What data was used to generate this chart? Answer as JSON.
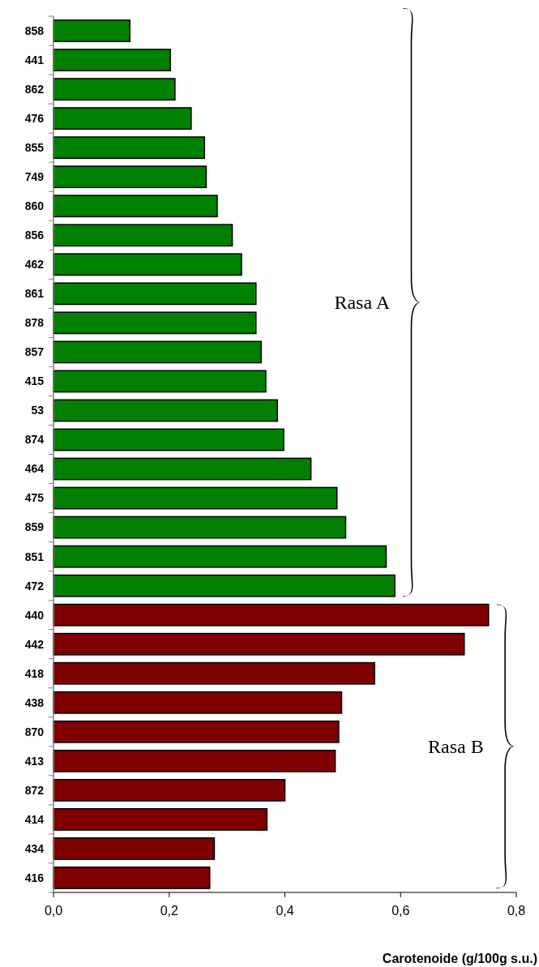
{
  "chart_data": {
    "type": "bar",
    "orientation": "horizontal",
    "categories": [
      "858",
      "441",
      "862",
      "476",
      "855",
      "749",
      "860",
      "856",
      "462",
      "861",
      "878",
      "857",
      "415",
      "53",
      "874",
      "464",
      "475",
      "859",
      "851",
      "472",
      "440",
      "442",
      "418",
      "438",
      "870",
      "413",
      "872",
      "414",
      "434",
      "416"
    ],
    "values": [
      0.132,
      0.202,
      0.21,
      0.238,
      0.261,
      0.264,
      0.283,
      0.309,
      0.325,
      0.35,
      0.35,
      0.359,
      0.367,
      0.387,
      0.398,
      0.445,
      0.49,
      0.505,
      0.575,
      0.59,
      0.752,
      0.71,
      0.555,
      0.498,
      0.493,
      0.487,
      0.4,
      0.369,
      0.278,
      0.27
    ],
    "colors": [
      "#008000",
      "#008000",
      "#008000",
      "#008000",
      "#008000",
      "#008000",
      "#008000",
      "#008000",
      "#008000",
      "#008000",
      "#008000",
      "#008000",
      "#008000",
      "#008000",
      "#008000",
      "#008000",
      "#008000",
      "#008000",
      "#008000",
      "#008000",
      "#800000",
      "#800000",
      "#800000",
      "#800000",
      "#800000",
      "#800000",
      "#800000",
      "#800000",
      "#800000",
      "#800000"
    ],
    "xlim": [
      0,
      0.8
    ],
    "xticks": [
      {
        "value": 0,
        "label": "0,0"
      },
      {
        "value": 0.2,
        "label": "0,2"
      },
      {
        "value": 0.4,
        "label": "0,4"
      },
      {
        "value": 0.6,
        "label": "0,6"
      },
      {
        "value": 0.8,
        "label": "0,8"
      }
    ],
    "xlabel": "Carotenoide (g/100g s.u.)",
    "annotations": [
      "Rasa A",
      "Rasa B"
    ],
    "grid": false
  }
}
